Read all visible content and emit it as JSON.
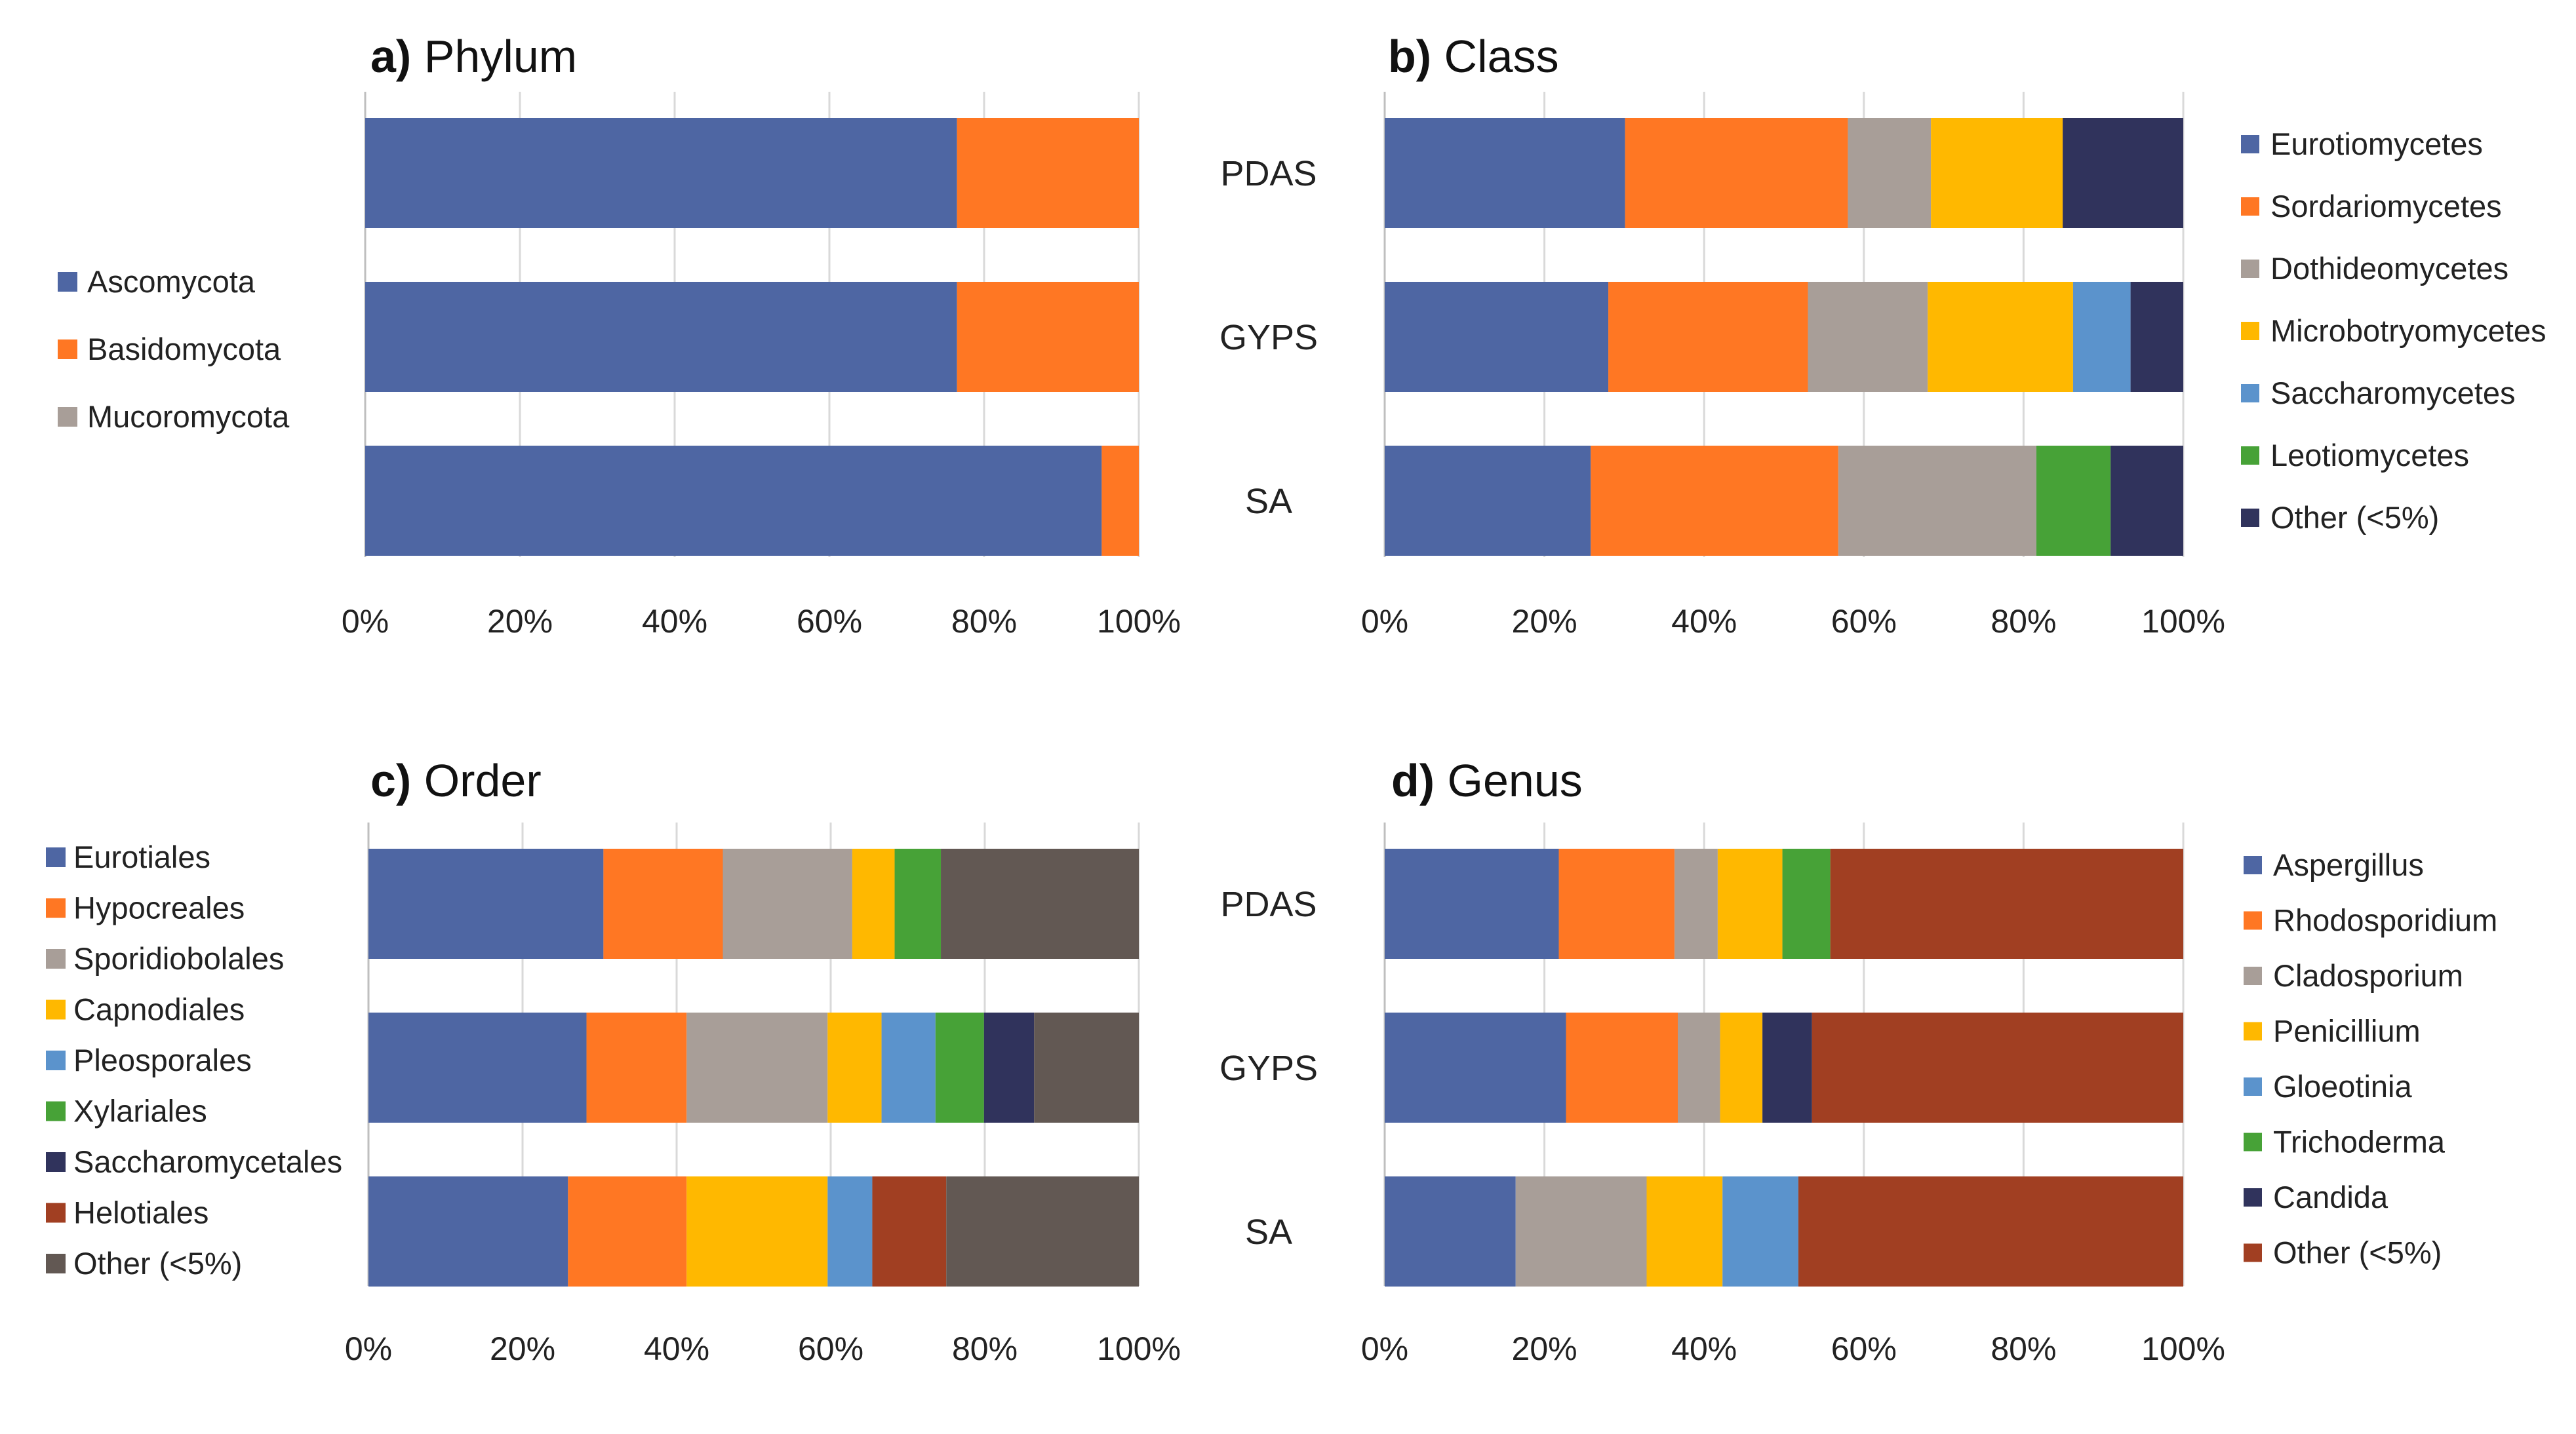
{
  "colors": {
    "blue": "#4e66a3",
    "orange": "#ff7723",
    "gray": "#a89e98",
    "yellow": "#ffb800",
    "lightblue": "#5b93cc",
    "green": "#47a237",
    "navy": "#30335c",
    "brown": "#a13f22",
    "darkgray": "#625853"
  },
  "samples": [
    "PDAS",
    "GYPS",
    "SA"
  ],
  "chart_data": [
    {
      "id": "a",
      "type": "bar",
      "orientation": "horizontal",
      "stacked": true,
      "title_letter": "a)",
      "title_name": "Phylum",
      "categories": [
        "PDAS",
        "GYPS",
        "SA"
      ],
      "xlim": [
        0,
        100
      ],
      "xticks": [
        "0%",
        "20%",
        "40%",
        "60%",
        "80%",
        "100%"
      ],
      "legend_position": "left",
      "series": [
        {
          "name": "Ascomycota",
          "color": "blue",
          "values": [
            76.5,
            76.5,
            95.2
          ]
        },
        {
          "name": "Basidomycota",
          "color": "orange",
          "values": [
            23.5,
            23.5,
            4.8
          ]
        },
        {
          "name": "Mucoromycota",
          "color": "gray",
          "values": [
            0,
            0,
            0
          ]
        }
      ]
    },
    {
      "id": "b",
      "type": "bar",
      "orientation": "horizontal",
      "stacked": true,
      "title_letter": "b)",
      "title_name": "Class",
      "categories": [
        "PDAS",
        "GYPS",
        "SA"
      ],
      "xlim": [
        0,
        100
      ],
      "xticks": [
        "0%",
        "20%",
        "40%",
        "60%",
        "80%",
        "100%"
      ],
      "legend_position": "right",
      "series": [
        {
          "name": "Eurotiomycetes",
          "color": "blue",
          "values": [
            30.1,
            28.0,
            25.8
          ]
        },
        {
          "name": "Sordariomycetes",
          "color": "orange",
          "values": [
            27.9,
            25.0,
            31.0
          ]
        },
        {
          "name": "Dothideomycetes",
          "color": "gray",
          "values": [
            10.4,
            15.0,
            24.8
          ]
        },
        {
          "name": "Microbotryomycetes",
          "color": "yellow",
          "values": [
            16.5,
            18.2,
            0
          ]
        },
        {
          "name": "Saccharomycetes",
          "color": "lightblue",
          "values": [
            0,
            7.2,
            0
          ]
        },
        {
          "name": "Leotiomycetes",
          "color": "green",
          "values": [
            0,
            0,
            9.3
          ]
        },
        {
          "name": "Other (<5%)",
          "color": "navy",
          "values": [
            15.1,
            6.6,
            9.1
          ]
        }
      ]
    },
    {
      "id": "c",
      "type": "bar",
      "orientation": "horizontal",
      "stacked": true,
      "title_letter": "c)",
      "title_name": "Order",
      "categories": [
        "PDAS",
        "GYPS",
        "SA"
      ],
      "xlim": [
        0,
        100
      ],
      "xticks": [
        "0%",
        "20%",
        "40%",
        "60%",
        "80%",
        "100%"
      ],
      "legend_position": "left",
      "series": [
        {
          "name": "Eurotiales",
          "color": "blue",
          "values": [
            30.5,
            28.3,
            25.9
          ]
        },
        {
          "name": "Hypocreales",
          "color": "orange",
          "values": [
            15.5,
            13.0,
            15.4
          ]
        },
        {
          "name": "Sporidiobolales",
          "color": "gray",
          "values": [
            16.8,
            18.3,
            0
          ]
        },
        {
          "name": "Capnodiales",
          "color": "yellow",
          "values": [
            5.5,
            7.0,
            18.3
          ]
        },
        {
          "name": "Pleosporales",
          "color": "lightblue",
          "values": [
            0,
            7.0,
            5.8
          ]
        },
        {
          "name": "Xylariales",
          "color": "green",
          "values": [
            6.0,
            6.3,
            0
          ]
        },
        {
          "name": "Saccharomycetales",
          "color": "navy",
          "values": [
            0,
            6.5,
            0
          ]
        },
        {
          "name": "Helotiales",
          "color": "brown",
          "values": [
            0,
            0,
            9.6
          ]
        },
        {
          "name": "Other (<5%)",
          "color": "darkgray",
          "values": [
            25.7,
            13.6,
            25.0
          ]
        }
      ]
    },
    {
      "id": "d",
      "type": "bar",
      "orientation": "horizontal",
      "stacked": true,
      "title_letter": "d)",
      "title_name": "Genus",
      "categories": [
        "PDAS",
        "GYPS",
        "SA"
      ],
      "xlim": [
        0,
        100
      ],
      "xticks": [
        "0%",
        "20%",
        "40%",
        "60%",
        "80%",
        "100%"
      ],
      "legend_position": "right",
      "series": [
        {
          "name": "Aspergillus",
          "color": "blue",
          "values": [
            21.8,
            22.7,
            16.4
          ]
        },
        {
          "name": "Rhodosporidium",
          "color": "orange",
          "values": [
            14.5,
            14.0,
            0
          ]
        },
        {
          "name": "Cladosporium",
          "color": "gray",
          "values": [
            5.4,
            5.3,
            16.4
          ]
        },
        {
          "name": "Penicillium",
          "color": "yellow",
          "values": [
            8.1,
            5.3,
            9.5
          ]
        },
        {
          "name": "Gloeotinia",
          "color": "lightblue",
          "values": [
            0,
            0,
            9.5
          ]
        },
        {
          "name": "Trichoderma",
          "color": "green",
          "values": [
            6.0,
            0,
            0
          ]
        },
        {
          "name": "Candida",
          "color": "navy",
          "values": [
            0,
            6.2,
            0
          ]
        },
        {
          "name": "Other (<5%)",
          "color": "brown",
          "values": [
            44.2,
            46.5,
            48.2
          ]
        }
      ]
    }
  ]
}
